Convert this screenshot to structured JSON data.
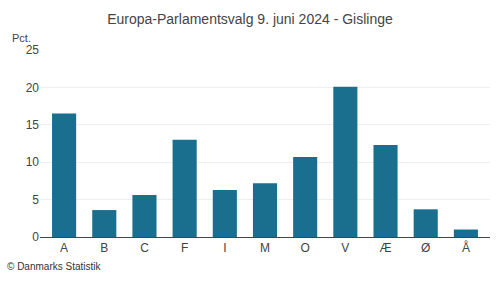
{
  "chart_data": {
    "type": "bar",
    "title": "Europa-Parlamentsvalg 9. juni 2024 - Gislinge",
    "ylabel": "Pct.",
    "annotations": [
      "© Danmarks Statistik"
    ],
    "categories": [
      "A",
      "B",
      "C",
      "F",
      "I",
      "M",
      "O",
      "V",
      "Æ",
      "Ø",
      "Å"
    ],
    "values": [
      16.5,
      3.6,
      5.6,
      13.0,
      6.3,
      7.2,
      10.7,
      20.1,
      12.3,
      3.7,
      1.0
    ],
    "color": "#1a6e8e",
    "ylim": [
      0,
      25
    ],
    "yticks": [
      0,
      5,
      10,
      15,
      20,
      25
    ],
    "grid": true
  }
}
